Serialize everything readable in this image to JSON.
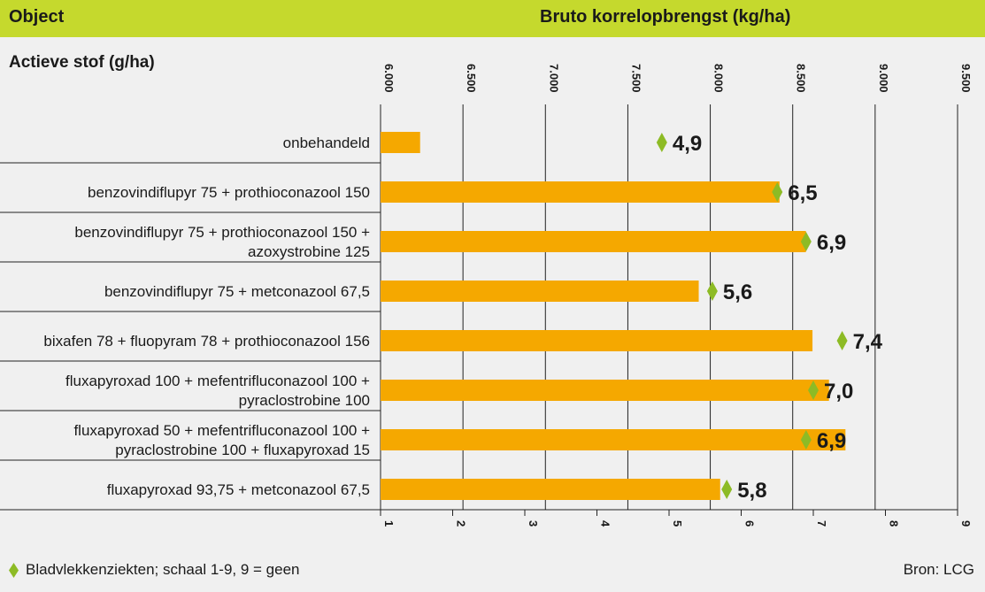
{
  "header": {
    "object_label": "Object",
    "title": "Bruto korrelopbrengst (kg/ha)"
  },
  "subheader": "Actieve stof (g/ha)",
  "colors": {
    "header_bg": "#c5d92d",
    "bar": "#f5a800",
    "marker": "#8dbb25",
    "background": "#f0f0f0"
  },
  "footer": {
    "legend_text": "Bladvlekkenziekten; schaal 1-9, 9 = geen",
    "legend_icon": "diamond-icon",
    "source": "Bron: LCG"
  },
  "chart_data": {
    "type": "bar",
    "orientation": "horizontal",
    "top_axis": {
      "ticks": [
        6000,
        6500,
        7000,
        7500,
        8000,
        8500,
        9000,
        9500
      ],
      "tick_labels": [
        "6.000",
        "6.500",
        "7.000",
        "7.500",
        "8.000",
        "8.500",
        "9.000",
        "9.500"
      ],
      "range": [
        6000,
        9500
      ]
    },
    "bottom_axis": {
      "ticks": [
        1,
        2,
        3,
        4,
        5,
        6,
        7,
        8,
        9
      ],
      "tick_labels": [
        "1",
        "2",
        "3",
        "4",
        "5",
        "6",
        "7",
        "8",
        "9"
      ],
      "range": [
        1,
        9
      ]
    },
    "categories": [
      [
        "onbehandeld"
      ],
      [
        "benzovindiflupyr 75 + prothioconazool 150"
      ],
      [
        "benzovindiflupyr 75 + prothioconazool 150 +",
        "azoxystrobine 125"
      ],
      [
        "benzovindiflupyr 75 + metconazool 67,5"
      ],
      [
        "bixafen 78 + fluopyram 78 + prothioconazool 156"
      ],
      [
        "fluxapyroxad 100 + mefentrifluconazool 100 +",
        "pyraclostrobine 100"
      ],
      [
        "fluxapyroxad 50 + mefentrifluconazool 100 +",
        "pyraclostrobine 100 + fluxapyroxad 15"
      ],
      [
        "fluxapyroxad 93,75 + metconazool 67,5"
      ]
    ],
    "series": [
      {
        "type": "bar",
        "axis": "top",
        "values": [
          6240,
          8420,
          8580,
          7930,
          8620,
          8720,
          8820,
          8060
        ]
      },
      {
        "type": "marker",
        "axis": "bottom",
        "values": [
          4.9,
          6.5,
          6.9,
          5.6,
          7.4,
          7.0,
          6.9,
          5.8
        ],
        "labels": [
          "4,9",
          "6,5",
          "6,9",
          "5,6",
          "7,4",
          "7,0",
          "6,9",
          "5,8"
        ]
      }
    ],
    "grid": true,
    "legend_position": "bottom-left"
  }
}
